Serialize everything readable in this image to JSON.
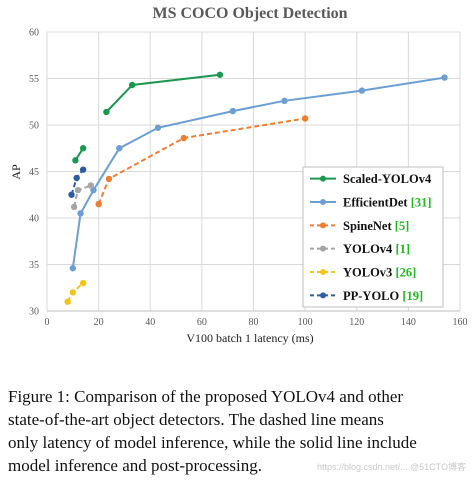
{
  "chart_data": {
    "type": "line",
    "title": "MS COCO Object Detection",
    "xlabel": "V100 batch 1 latency (ms)",
    "ylabel": "AP",
    "xlim": [
      0,
      160
    ],
    "ylim": [
      30,
      60
    ],
    "xticks": [
      0,
      20,
      40,
      60,
      80,
      100,
      120,
      140,
      160
    ],
    "yticks": [
      30,
      35,
      40,
      45,
      50,
      55,
      60
    ],
    "grid": true,
    "legend_position": "lower-right",
    "series": [
      {
        "name": "Scaled-YOLOv4",
        "ref": "",
        "style": "solid",
        "color": "#1a9850",
        "x": [
          23,
          33,
          67
        ],
        "y": [
          51.4,
          54.3,
          55.4
        ]
      },
      {
        "name": "Scaled-YOLOv4",
        "ref": "",
        "style": "solid",
        "color": "#1a9850",
        "x": [
          11,
          14
        ],
        "y": [
          46.2,
          47.5
        ]
      },
      {
        "name": "EfficientDet",
        "ref": "[31]",
        "style": "solid",
        "color": "#6b9fd4",
        "x": [
          10,
          13,
          18,
          28,
          43,
          72,
          92,
          122,
          154
        ],
        "y": [
          34.6,
          40.5,
          43.0,
          47.5,
          49.7,
          51.5,
          52.6,
          53.7,
          55.1
        ]
      },
      {
        "name": "SpineNet",
        "ref": "[5]",
        "style": "dashed",
        "color": "#ed7d31",
        "x": [
          20,
          24,
          53,
          100
        ],
        "y": [
          41.5,
          44.2,
          48.6,
          50.7
        ]
      },
      {
        "name": "YOLOv4",
        "ref": "[1]",
        "style": "dashed",
        "color": "#a5a5a5",
        "x": [
          10.5,
          12,
          17
        ],
        "y": [
          41.2,
          43.0,
          43.5
        ]
      },
      {
        "name": "YOLOv3",
        "ref": "[26]",
        "style": "dashed",
        "color": "#f2c418",
        "x": [
          8,
          10,
          14
        ],
        "y": [
          31.0,
          32.0,
          33.0
        ]
      },
      {
        "name": "PP-YOLO",
        "ref": "[19]",
        "style": "dashed",
        "color": "#2e5c9e",
        "x": [
          9.5,
          11.5,
          14
        ],
        "y": [
          42.5,
          44.3,
          45.2
        ]
      }
    ],
    "legend": [
      {
        "name": "Scaled-YOLOv4",
        "ref": "",
        "style": "solid",
        "color": "#1a9850"
      },
      {
        "name": "EfficientDet",
        "ref": "[31]",
        "style": "solid",
        "color": "#6b9fd4"
      },
      {
        "name": "SpineNet",
        "ref": "[5]",
        "style": "dashed",
        "color": "#ed7d31"
      },
      {
        "name": "YOLOv4",
        "ref": "[1]",
        "style": "dashed",
        "color": "#a5a5a5"
      },
      {
        "name": "YOLOv3",
        "ref": "[26]",
        "style": "dashed",
        "color": "#f2c418"
      },
      {
        "name": "PP-YOLO",
        "ref": "[19]",
        "style": "dashed",
        "color": "#2e5c9e"
      }
    ]
  },
  "caption": {
    "line1": "Figure 1: Comparison of the proposed YOLOv4 and other",
    "line2": "state-of-the-art object detectors.  The dashed line means",
    "line3": "only latency of model inference, while the solid line include",
    "line4": "model inference and post-processing."
  },
  "watermark": "https://blog.csdn.net/...  @51CTO博客"
}
